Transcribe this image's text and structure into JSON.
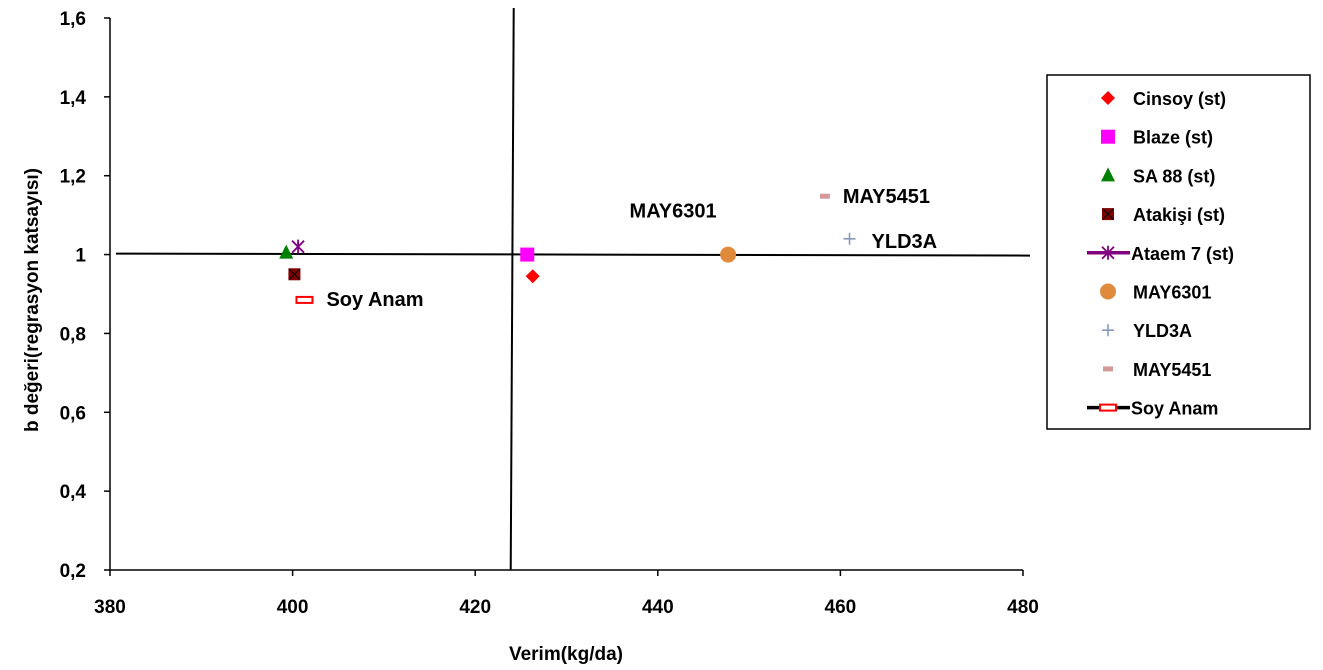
{
  "chart_data": {
    "type": "scatter",
    "title": "",
    "xlabel": "Verim(kg/da)",
    "ylabel": "b değeri(regrasyon katsayısı)",
    "xlim": [
      380,
      480
    ],
    "ylim": [
      0.2,
      1.6
    ],
    "x_ticks": [
      380,
      400,
      420,
      440,
      460,
      480
    ],
    "y_ticks": [
      0.2,
      0.4,
      0.6,
      0.8,
      1.0,
      1.2,
      1.4,
      1.6
    ],
    "x_tick_labels": [
      "380",
      "400",
      "420",
      "440",
      "460",
      "480"
    ],
    "y_tick_labels": [
      "0,2",
      "0,4",
      "0,6",
      "0,8",
      "1",
      "1,2",
      "1,4",
      "1,6"
    ],
    "grid": false,
    "legend_position": "right",
    "reference_lines": {
      "x": 424,
      "y": 1.0
    },
    "series": [
      {
        "name": "Cinsoy (st)",
        "x": 426.3,
        "y": 0.945,
        "marker": "diamond",
        "color": "#ff0000"
      },
      {
        "name": "Blaze (st)",
        "x": 425.7,
        "y": 1.0,
        "marker": "square",
        "color": "#ff00ff"
      },
      {
        "name": "SA 88 (st)",
        "x": 399.3,
        "y": 1.005,
        "marker": "triangle",
        "color": "#008000"
      },
      {
        "name": "Atakişi (st)",
        "x": 400.2,
        "y": 0.95,
        "marker": "xsquare",
        "color": "#800000"
      },
      {
        "name": "Ataem 7 (st)",
        "x": 400.6,
        "y": 1.02,
        "marker": "star",
        "color": "#800080"
      },
      {
        "name": "MAY6301",
        "x": 447.7,
        "y": 1.0,
        "marker": "circle",
        "color": "#e08a3c"
      },
      {
        "name": "YLD3A",
        "x": 461.0,
        "y": 1.04,
        "marker": "plus",
        "color": "#8899bb"
      },
      {
        "name": "MAY5451",
        "x": 458.3,
        "y": 1.148,
        "marker": "dash",
        "color": "#d49a9a"
      },
      {
        "name": "Soy Anam",
        "x": 401.3,
        "y": 0.885,
        "marker": "bar",
        "color": "#ff0000"
      }
    ],
    "annotations": [
      {
        "text": "Soy Anam",
        "series": "Soy Anam"
      },
      {
        "text": "MAY6301",
        "series": "MAY6301"
      },
      {
        "text": "MAY5451",
        "series": "MAY5451"
      },
      {
        "text": "YLD3A",
        "series": "YLD3A"
      }
    ]
  }
}
